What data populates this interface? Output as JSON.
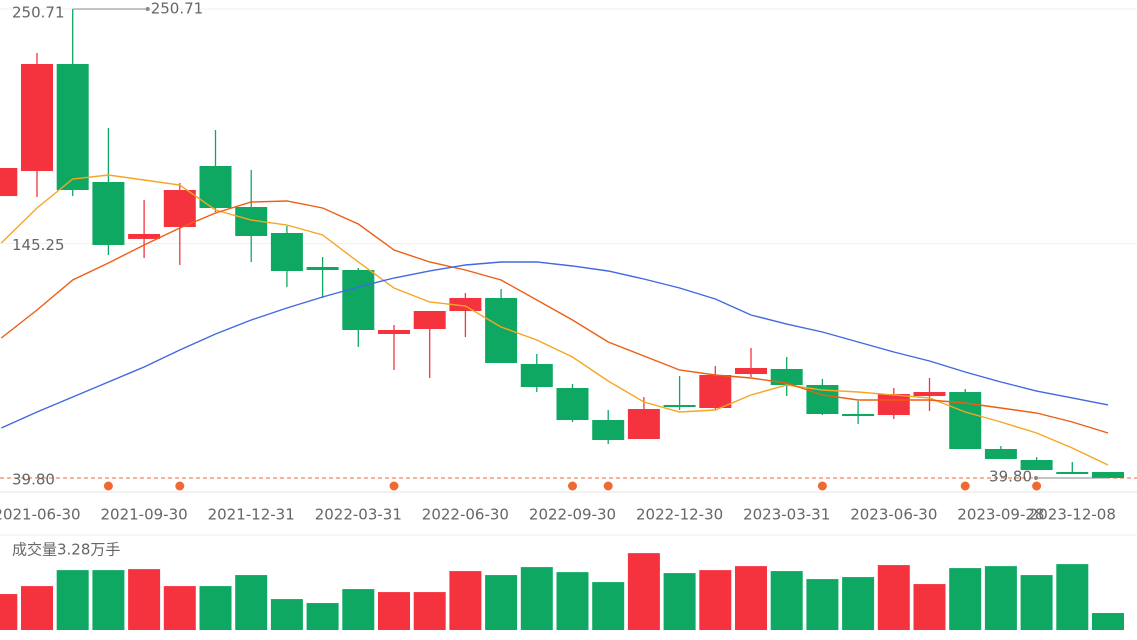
{
  "chart_data": {
    "type": "candlestick",
    "categories": [
      null,
      "2021-06-30",
      null,
      null,
      "2021-09-30",
      null,
      null,
      "2021-12-31",
      null,
      null,
      "2022-03-31",
      null,
      null,
      "2022-06-30",
      null,
      null,
      "2022-09-30",
      null,
      null,
      "2022-12-30",
      null,
      null,
      "2023-03-31",
      null,
      null,
      "2023-06-30",
      null,
      null,
      "2023-09-28",
      null,
      "2023-12-08",
      null
    ],
    "open": [
      166.6,
      177.86,
      225.98,
      172.91,
      147.3,
      152.68,
      180.11,
      161.67,
      149.98,
      134.69,
      133.34,
      104.56,
      106.81,
      114.9,
      120.75,
      91.07,
      80.27,
      65.88,
      57.33,
      72.63,
      71.28,
      86.57,
      88.82,
      81.62,
      68.58,
      68.13,
      76.67,
      78.47,
      52.84,
      47.89,
      42.5,
      42.5
    ],
    "high": [
      179.2,
      230.92,
      250.71,
      197.2,
      164.82,
      172.46,
      196.3,
      178.31,
      153.12,
      139.18,
      134.24,
      108.6,
      114.9,
      123.0,
      124.8,
      95.57,
      82.07,
      70.38,
      76.22,
      85.67,
      90.17,
      98.26,
      94.22,
      84.32,
      74.43,
      80.27,
      84.77,
      79.82,
      54.19,
      49.25,
      46.99,
      42.5
    ],
    "low": [
      166.6,
      166.17,
      166.62,
      140.08,
      138.73,
      135.59,
      159.42,
      136.94,
      125.69,
      120.75,
      98.71,
      88.37,
      84.77,
      103.21,
      91.52,
      78.48,
      64.98,
      55.09,
      57.33,
      70.38,
      70.38,
      85.22,
      76.67,
      68.13,
      64.08,
      66.34,
      69.93,
      52.84,
      48.35,
      43.39,
      41.6,
      39.8
    ],
    "close": [
      179.2,
      225.98,
      169.31,
      144.58,
      149.53,
      169.31,
      161.22,
      148.63,
      132.89,
      133.34,
      106.36,
      106.36,
      114.9,
      120.75,
      91.52,
      80.72,
      65.88,
      56.88,
      70.83,
      71.73,
      86.12,
      89.27,
      81.62,
      68.58,
      67.68,
      77.57,
      78.47,
      52.84,
      48.35,
      43.39,
      41.6,
      39.8
    ],
    "up_color": "#f5333f",
    "down_color": "#0fa863",
    "series": [
      {
        "color": "#f5a623",
        "values": [
          145.48,
          161.22,
          174.26,
          176.06,
          173.81,
          171.56,
          160.32,
          155.82,
          153.57,
          149.08,
          136.94,
          125.24,
          118.95,
          117.15,
          107.71,
          101.86,
          94.21,
          83.42,
          73.98,
          69.48,
          70.38,
          77.13,
          81.62,
          79.37,
          78.47,
          77.13,
          75.78,
          69.48,
          64.98,
          60.04,
          53.29,
          45.65
        ]
      },
      {
        "color": "#ed5e14",
        "values": [
          102.76,
          115.35,
          128.84,
          136.49,
          144.58,
          152.23,
          158.97,
          163.92,
          164.37,
          161.22,
          154.02,
          142.33,
          136.94,
          133.34,
          128.84,
          119.85,
          110.85,
          100.96,
          94.66,
          88.37,
          86.12,
          84.77,
          82.52,
          77.13,
          74.88,
          74.88,
          74.88,
          73.53,
          71.28,
          69.03,
          64.98,
          60.04
        ]
      },
      {
        "color": "#4169e1",
        "values": [
          62.29,
          69.48,
          76.23,
          82.97,
          89.72,
          97.36,
          104.56,
          110.85,
          116.25,
          121.2,
          125.69,
          129.74,
          132.89,
          135.59,
          136.94,
          136.94,
          135.14,
          132.89,
          129.29,
          125.24,
          120.3,
          113.1,
          109.05,
          105.46,
          100.96,
          96.46,
          92.42,
          87.47,
          82.97,
          78.92,
          75.78,
          72.63
        ]
      }
    ],
    "ylim": [
      39.8,
      250.71
    ],
    "yticks": [
      {
        "value": 250.71,
        "label": "250.71"
      },
      {
        "value": 145.25,
        "label": "145.25"
      },
      {
        "value": 39.8,
        "label": "39.80"
      }
    ],
    "high_label": "250.71",
    "low_label": "39.80",
    "event_color": "#ef6a32",
    "event_markers": [
      3,
      5,
      11,
      16,
      17,
      23,
      27,
      29
    ],
    "volume": {
      "label": "成交量3.28万手",
      "ylim": [
        0,
        17.4
      ],
      "values": [
        6.95,
        8.49,
        11.58,
        11.58,
        11.77,
        8.49,
        8.49,
        10.62,
        5.98,
        5.21,
        7.91,
        7.33,
        7.33,
        11.39,
        10.62,
        12.16,
        11.19,
        9.26,
        14.86,
        11.0,
        11.58,
        12.35,
        11.39,
        9.84,
        10.23,
        12.55,
        8.88,
        11.97,
        12.35,
        10.62,
        12.74,
        3.28
      ]
    }
  }
}
